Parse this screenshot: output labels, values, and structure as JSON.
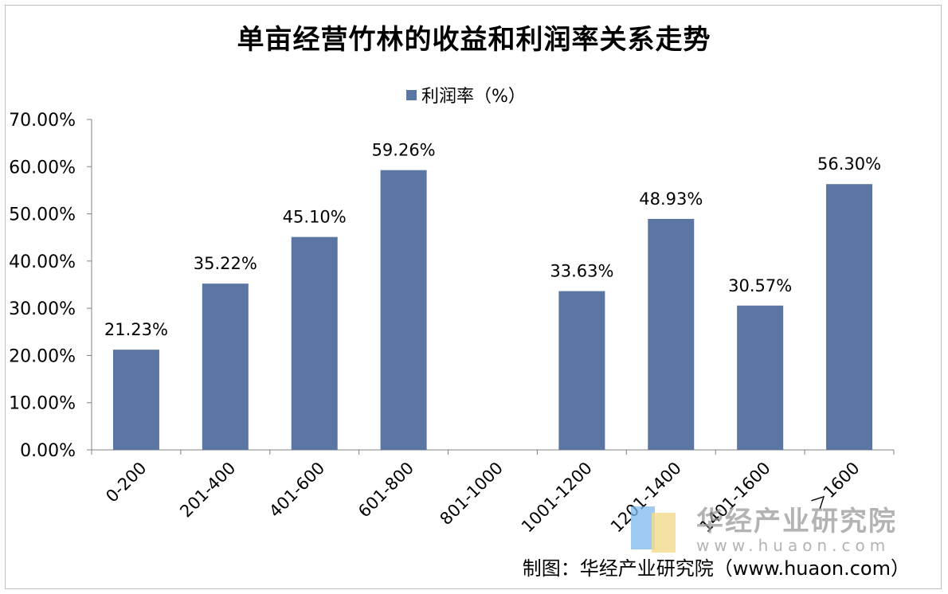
{
  "chart_data": {
    "type": "bar",
    "title": "单亩经营竹林的收益和利润率关系走势",
    "legend": {
      "position": "top",
      "entries": [
        "利润率（%）"
      ]
    },
    "categories": [
      "0-200",
      "201-400",
      "401-600",
      "601-800",
      "801-1000",
      "1001-1200",
      "1201-1400",
      "1401-1600",
      "＞1600"
    ],
    "series": [
      {
        "name": "利润率（%）",
        "values": [
          21.23,
          35.22,
          45.1,
          59.26,
          null,
          33.63,
          48.93,
          30.57,
          56.3
        ],
        "labels": [
          "21.23%",
          "35.22%",
          "45.10%",
          "59.26%",
          "",
          "33.63%",
          "48.93%",
          "30.57%",
          "56.30%"
        ]
      }
    ],
    "ylim": [
      0,
      70
    ],
    "yticks": [
      "0.00%",
      "10.00%",
      "20.00%",
      "30.00%",
      "40.00%",
      "50.00%",
      "60.00%",
      "70.00%"
    ],
    "xlabel": "",
    "ylabel": "",
    "grid": false,
    "bar_color": "#5b76a3"
  },
  "watermark": {
    "name": "华经产业研究院",
    "url": "www.huaon.com"
  },
  "source": "制图：华经产业研究院（www.huaon.com）"
}
